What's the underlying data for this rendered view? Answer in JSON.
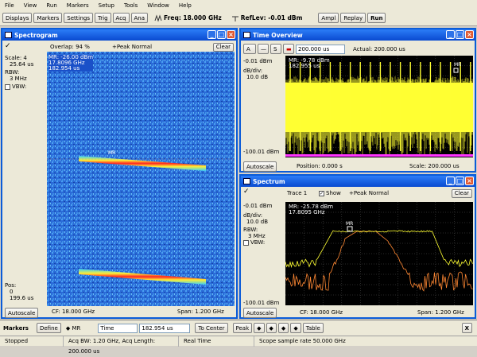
{
  "menu": [
    "File",
    "View",
    "Run",
    "Markers",
    "Setup",
    "Tools",
    "Window",
    "Help"
  ],
  "toolbar": {
    "buttons": [
      "Displays",
      "Markers",
      "Settings",
      "Trig",
      "Acq",
      "Ana"
    ],
    "freq": "Freq: 18.000 GHz",
    "reflev": "RefLev: -0.01 dBm",
    "ampl": "Ampl",
    "replay": "Replay",
    "run": "Run"
  },
  "spectrogram": {
    "title": "Spectrogram",
    "overlap": "Overlap: 94 %",
    "peak": "+Peak Normal",
    "clear": "Clear",
    "scale_label": "Scale: 4",
    "scale_value": "25.64 us",
    "rbw_label": "RBW:",
    "rbw_value": "3 MHz",
    "vbw_label": "VBW:",
    "pos_label": "Pos:",
    "pos_value": "0",
    "pos_value2": "199.6 us",
    "autoscale": "Autoscale",
    "cf": "CF: 18.000 GHz",
    "span": "Span: 1.200 GHz",
    "readout": [
      "MR: -26.00 dBm",
      "17.8096 GHz",
      "182.954 us"
    ],
    "marker": "MR"
  },
  "time_overview": {
    "title": "Time Overview",
    "time_field": "200.000 us",
    "actual": "Actual:  200.000 us",
    "ref": "-0.01 dBm",
    "dbdiv_label": "dB/div:",
    "dbdiv_value": "10.0 dB",
    "bottom": "-100.01 dBm",
    "autoscale": "Autoscale",
    "position": "Position: 0.000 s",
    "scale": "Scale: 200.000 us",
    "readout": [
      "MR: -9.78 dBm",
      "182.955 us"
    ],
    "marker": "MR"
  },
  "spectrum": {
    "title": "Spectrum",
    "trace": "Trace 1",
    "show": "Show",
    "peak": "+Peak Normal",
    "clear": "Clear",
    "ref": "-0.01 dBm",
    "dbdiv_label": "dB/div:",
    "dbdiv_value": "10.0 dB",
    "rbw_label": "RBW:",
    "rbw_value": "3 MHz",
    "vbw_label": "VBW:",
    "bottom": "-100.01 dBm",
    "autoscale": "Autoscale",
    "cf": "CF: 18.000 GHz",
    "span": "Span: 1.200 GHz",
    "readout": [
      "MR: -25.78 dBm",
      "17.8095 GHz"
    ],
    "marker": "MR"
  },
  "markerbar": {
    "label": "Markers",
    "define": "Define",
    "marker_select": "MR",
    "mode": "Time",
    "value": "182.954 us",
    "to_center": "To Center",
    "peak": "Peak",
    "table": "Table",
    "close": "X"
  },
  "status": {
    "state": "Stopped",
    "acq": "Acq BW: 1.20 GHz, Acq Length: 200.000 us",
    "mode": "Real Time",
    "scope": "Scope sample rate 50.000 GHz"
  },
  "colors": {
    "trace_yellow": "#ffff33",
    "trace_orange": "#ff8833",
    "accent": "#0b5cd8"
  }
}
